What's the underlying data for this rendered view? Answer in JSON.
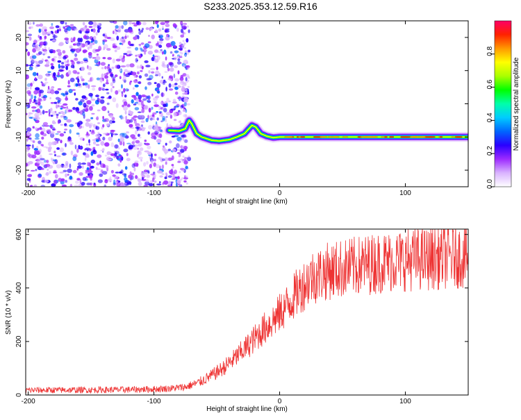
{
  "title": "S233.2025.353.12.59.R16",
  "chart_data": [
    {
      "type": "heatmap",
      "xlabel": "Height of straight line (km)",
      "ylabel": "Frequency (Hz)",
      "xlim": [
        -202,
        150
      ],
      "ylim": [
        -25,
        25
      ],
      "xticks": [
        -200,
        -100,
        0,
        100
      ],
      "xtick_labels": [
        "-200",
        "-100",
        "0",
        "100"
      ],
      "yticks": [
        -20,
        -10,
        0,
        10,
        20
      ],
      "ytick_labels": [
        "-20",
        "-10",
        "0",
        "10",
        "20"
      ],
      "trace": {
        "x": [
          -88,
          -80,
          -75,
          -72,
          -70,
          -66,
          -62,
          -58,
          -54,
          -48,
          -40,
          -34,
          -28,
          -22,
          -19,
          -15,
          -10,
          -5,
          0,
          10,
          40,
          80,
          120,
          150
        ],
        "y": [
          -8,
          -8.2,
          -7.5,
          -5,
          -6,
          -9,
          -10,
          -10.5,
          -11,
          -11.2,
          -10.8,
          -10,
          -9,
          -6.5,
          -7,
          -9,
          -9.8,
          -10.2,
          -10,
          -10,
          -10,
          -10,
          -10,
          -10
        ]
      },
      "noise_region": {
        "x_min": -202,
        "x_max": -72,
        "density": "high"
      },
      "colorbar": {
        "label": "Normalized spectral amplitude",
        "range": [
          0,
          1
        ],
        "ticks": [
          0.0,
          0.2,
          0.4,
          0.6,
          0.8
        ],
        "tick_labels": [
          "0.0",
          "0.2",
          "0.4",
          "0.6",
          "0.8"
        ],
        "colors": [
          "#ffffff",
          "#d9b3ff",
          "#9d2bff",
          "#2a00ff",
          "#0066ff",
          "#00ccff",
          "#00ffaa",
          "#00ff00",
          "#aaff00",
          "#ffff00",
          "#ff9900",
          "#ff2200",
          "#ff0066"
        ]
      }
    },
    {
      "type": "line",
      "xlabel": "Height of straight line (km)",
      "ylabel": "SNR (10 * v/v)",
      "xlim": [
        -202,
        150
      ],
      "ylim": [
        0,
        620
      ],
      "xticks": [
        -200,
        -100,
        0,
        100
      ],
      "xtick_labels": [
        "-200",
        "-100",
        "0",
        "100"
      ],
      "yticks": [
        0,
        200,
        400,
        600
      ],
      "ytick_labels": [
        "0",
        "200",
        "400",
        "600"
      ],
      "series": [
        {
          "name": "SNR",
          "color": "#ee3333",
          "envelope_x": [
            -202,
            -150,
            -120,
            -100,
            -85,
            -75,
            -65,
            -55,
            -45,
            -35,
            -25,
            -15,
            -5,
            5,
            15,
            25,
            40,
            60,
            80,
            100,
            120,
            140,
            150
          ],
          "envelope_y": [
            18,
            19,
            20,
            22,
            25,
            30,
            45,
            70,
            100,
            140,
            185,
            235,
            280,
            330,
            390,
            440,
            465,
            480,
            495,
            505,
            510,
            520,
            515
          ]
        }
      ]
    }
  ]
}
